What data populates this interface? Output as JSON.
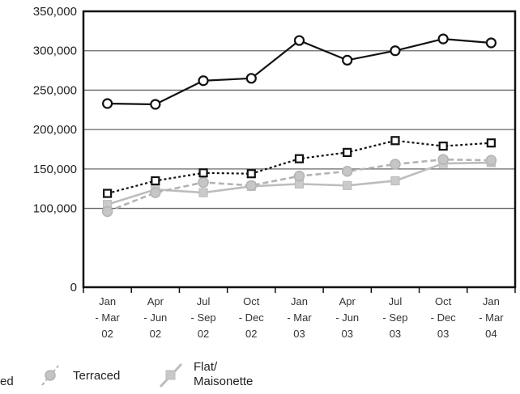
{
  "chart_data": {
    "type": "line",
    "title": "",
    "xlabel": "",
    "ylabel": "",
    "categories": [
      [
        "Jan",
        "- Mar",
        "02"
      ],
      [
        "Apr",
        "- Jun",
        "02"
      ],
      [
        "Jul",
        "- Sep",
        "02"
      ],
      [
        "Oct",
        "- Dec",
        "02"
      ],
      [
        "Jan",
        "- Mar",
        "03"
      ],
      [
        "Apr",
        "- Jun",
        "03"
      ],
      [
        "Jul",
        "- Sep",
        "03"
      ],
      [
        "Oct",
        "- Dec",
        "03"
      ],
      [
        "Jan",
        "- Mar",
        "04"
      ]
    ],
    "ylim": [
      0,
      350000
    ],
    "y_ticks": [
      "0",
      "100,000",
      "150,000",
      "200,000",
      "250,000",
      "300,000",
      "350,000"
    ],
    "y_tick_values": [
      0,
      100000,
      150000,
      200000,
      250000,
      300000,
      350000
    ],
    "grid": true,
    "legend_position": "bottom",
    "series": [
      {
        "name": "ed",
        "color": "#111111",
        "dash": "solid",
        "marker": "circle",
        "values": [
          233000,
          232000,
          262000,
          265000,
          313000,
          288000,
          300000,
          315000,
          310000
        ]
      },
      {
        "name": "",
        "color": "#111111",
        "dash": "dotted",
        "marker": "square",
        "values": [
          119000,
          135000,
          145000,
          144000,
          163000,
          171000,
          186000,
          179000,
          183000
        ]
      },
      {
        "name": "Terraced",
        "color": "#b3b3b3",
        "dash": "dashed",
        "marker": "circle",
        "values": [
          96000,
          120000,
          133000,
          129000,
          141000,
          147000,
          156000,
          162000,
          161000
        ]
      },
      {
        "name": "Flat/ Maisonette",
        "color": "#bdbdbd",
        "dash": "solid",
        "marker": "square",
        "values": [
          105000,
          124000,
          120000,
          128000,
          131000,
          129000,
          135000,
          157000,
          158000
        ]
      }
    ]
  }
}
